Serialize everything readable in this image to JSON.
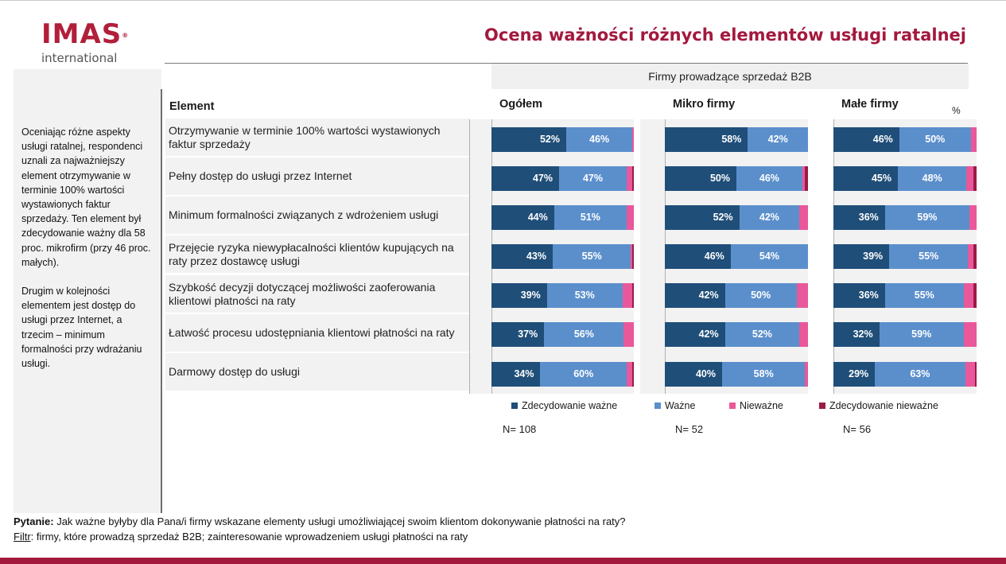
{
  "logo": {
    "main": "IMAS",
    "reg": "®",
    "sub": "international"
  },
  "header": {
    "title": "Ocena ważności różnych elementów usługi ratalnej"
  },
  "sidebar": {
    "paragraphs": [
      "Oceniając różne aspekty usługi ratalnej, respondenci uznali za najważniejszy element otrzymywanie w terminie 100% wartości wystawionych faktur sprzedaży. Ten element był zdecydowanie ważny dla 58 proc. mikrofirm (przy 46 proc. małych).",
      "Drugim w kolejności elementem jest dostęp do usługi przez Internet, a trzecim – minimum formalności przy wdrażaniu usługi."
    ]
  },
  "chart_data": {
    "type": "bar",
    "orientation": "horizontal-stacked-100",
    "group_header": "Firmy prowadzące sprzedaż B2B",
    "element_header": "Element",
    "unit_label": "%",
    "categories": [
      "Otrzymywanie w terminie 100% wartości wystawionych faktur sprzedaży",
      "Pełny dostęp do usługi przez Internet",
      "Minimum formalności związanych z wdrożeniem usługi",
      "Przejęcie ryzyka niewypłacalności klientów kupujących na raty przez dostawcę usługi",
      "Szybkość decyzji dotyczącej możliwości zaoferowania klientowi płatności na raty",
      "Łatwość procesu udostępniania klientowi płatności na raty",
      "Darmowy dostęp do usługi"
    ],
    "series_names": [
      "Zdecydowanie ważne",
      "Ważne",
      "Nieważne",
      "Zdecydowanie nieważne"
    ],
    "colors": [
      "#1f4e79",
      "#5b8fcc",
      "#e8589a",
      "#9c1a49"
    ],
    "segments": [
      {
        "name": "Ogółem",
        "n_label": "N= 108",
        "values": [
          [
            52,
            46,
            1,
            0
          ],
          [
            47,
            47,
            4,
            1
          ],
          [
            44,
            51,
            5,
            0
          ],
          [
            43,
            55,
            1,
            1
          ],
          [
            39,
            53,
            7,
            1
          ],
          [
            37,
            56,
            7,
            0
          ],
          [
            34,
            60,
            4,
            1
          ]
        ]
      },
      {
        "name": "Mikro firmy",
        "n_label": "N= 52",
        "values": [
          [
            58,
            42,
            0,
            0
          ],
          [
            50,
            46,
            2,
            2
          ],
          [
            52,
            42,
            6,
            0
          ],
          [
            46,
            54,
            0,
            0
          ],
          [
            42,
            50,
            8,
            0
          ],
          [
            42,
            52,
            6,
            0
          ],
          [
            40,
            58,
            2,
            0
          ]
        ]
      },
      {
        "name": "Małe firmy",
        "n_label": "N= 56",
        "values": [
          [
            46,
            50,
            4,
            0
          ],
          [
            45,
            48,
            5,
            2
          ],
          [
            36,
            59,
            5,
            0
          ],
          [
            39,
            55,
            4,
            2
          ],
          [
            36,
            55,
            7,
            2
          ],
          [
            32,
            59,
            9,
            0
          ],
          [
            29,
            63,
            7,
            1
          ]
        ]
      }
    ],
    "data_labels_shown_for_series": [
      0,
      1
    ]
  },
  "footer": {
    "question_label": "Pytanie:",
    "question_text": " Jak ważne byłyby dla Pana/i firmy wskazane elementy usługi umożliwiającej swoim klientom dokonywanie płatności na raty?",
    "filter_label": "Filtr",
    "filter_text": ": firmy, które prowadzą sprzedaż B2B; zainteresowanie wprowadzeniem usługi płatności na raty"
  }
}
